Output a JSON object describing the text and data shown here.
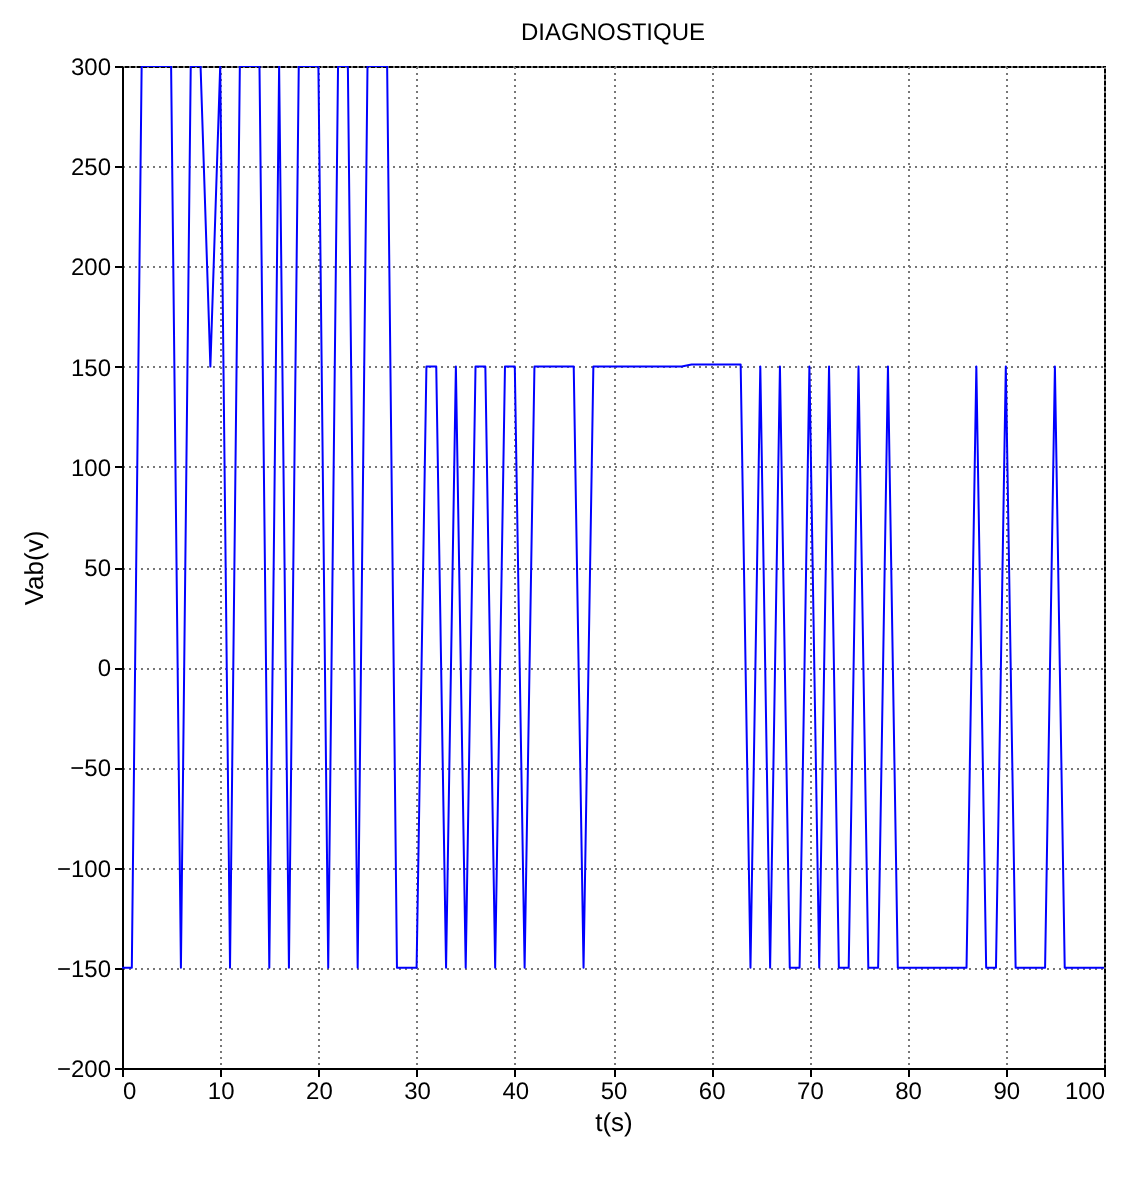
{
  "chart_data": {
    "type": "line",
    "title": "DIAGNOSTIQUE",
    "xlabel": "t(s)",
    "ylabel": "Vab(v)",
    "x": [
      0,
      1,
      2,
      5,
      6,
      7,
      8,
      9,
      10,
      11,
      12,
      14,
      15,
      16,
      17,
      18,
      20,
      21,
      22,
      23,
      24,
      25,
      27,
      28,
      30,
      31,
      32,
      33,
      34,
      35,
      36,
      37,
      38,
      39,
      40,
      41,
      42,
      46,
      47,
      48,
      57,
      58,
      63,
      64,
      65,
      66,
      67,
      68,
      69,
      70,
      71,
      72,
      73,
      74,
      75,
      76,
      77,
      78,
      79,
      86,
      87,
      88,
      89,
      90,
      91,
      94,
      95,
      96,
      100
    ],
    "series": [
      {
        "color": "#0000ff",
        "values": [
          -150,
          -150,
          300,
          300,
          -150,
          300,
          300,
          150,
          300,
          -150,
          300,
          300,
          -150,
          300,
          -150,
          300,
          300,
          -150,
          300,
          300,
          -150,
          300,
          300,
          -150,
          -150,
          150,
          150,
          -150,
          150,
          -150,
          150,
          150,
          -150,
          150,
          150,
          -150,
          150,
          150,
          -150,
          150,
          150,
          151,
          151,
          -150,
          150,
          -150,
          150,
          -150,
          -150,
          150,
          -150,
          150,
          -150,
          -150,
          150,
          -150,
          -150,
          150,
          -150,
          -150,
          150,
          -150,
          -150,
          150,
          -150,
          -150,
          150,
          -150,
          -150
        ]
      }
    ],
    "xlim": [
      0,
      100
    ],
    "xticks": [
      0,
      10,
      20,
      30,
      40,
      50,
      60,
      70,
      80,
      90,
      100
    ],
    "ylim": [
      -200,
      300
    ],
    "yticks": [
      -200,
      -150,
      -100,
      -50,
      0,
      50,
      100,
      150,
      200,
      250,
      300
    ],
    "grid": true,
    "marker": "none",
    "line_style": "solid"
  }
}
